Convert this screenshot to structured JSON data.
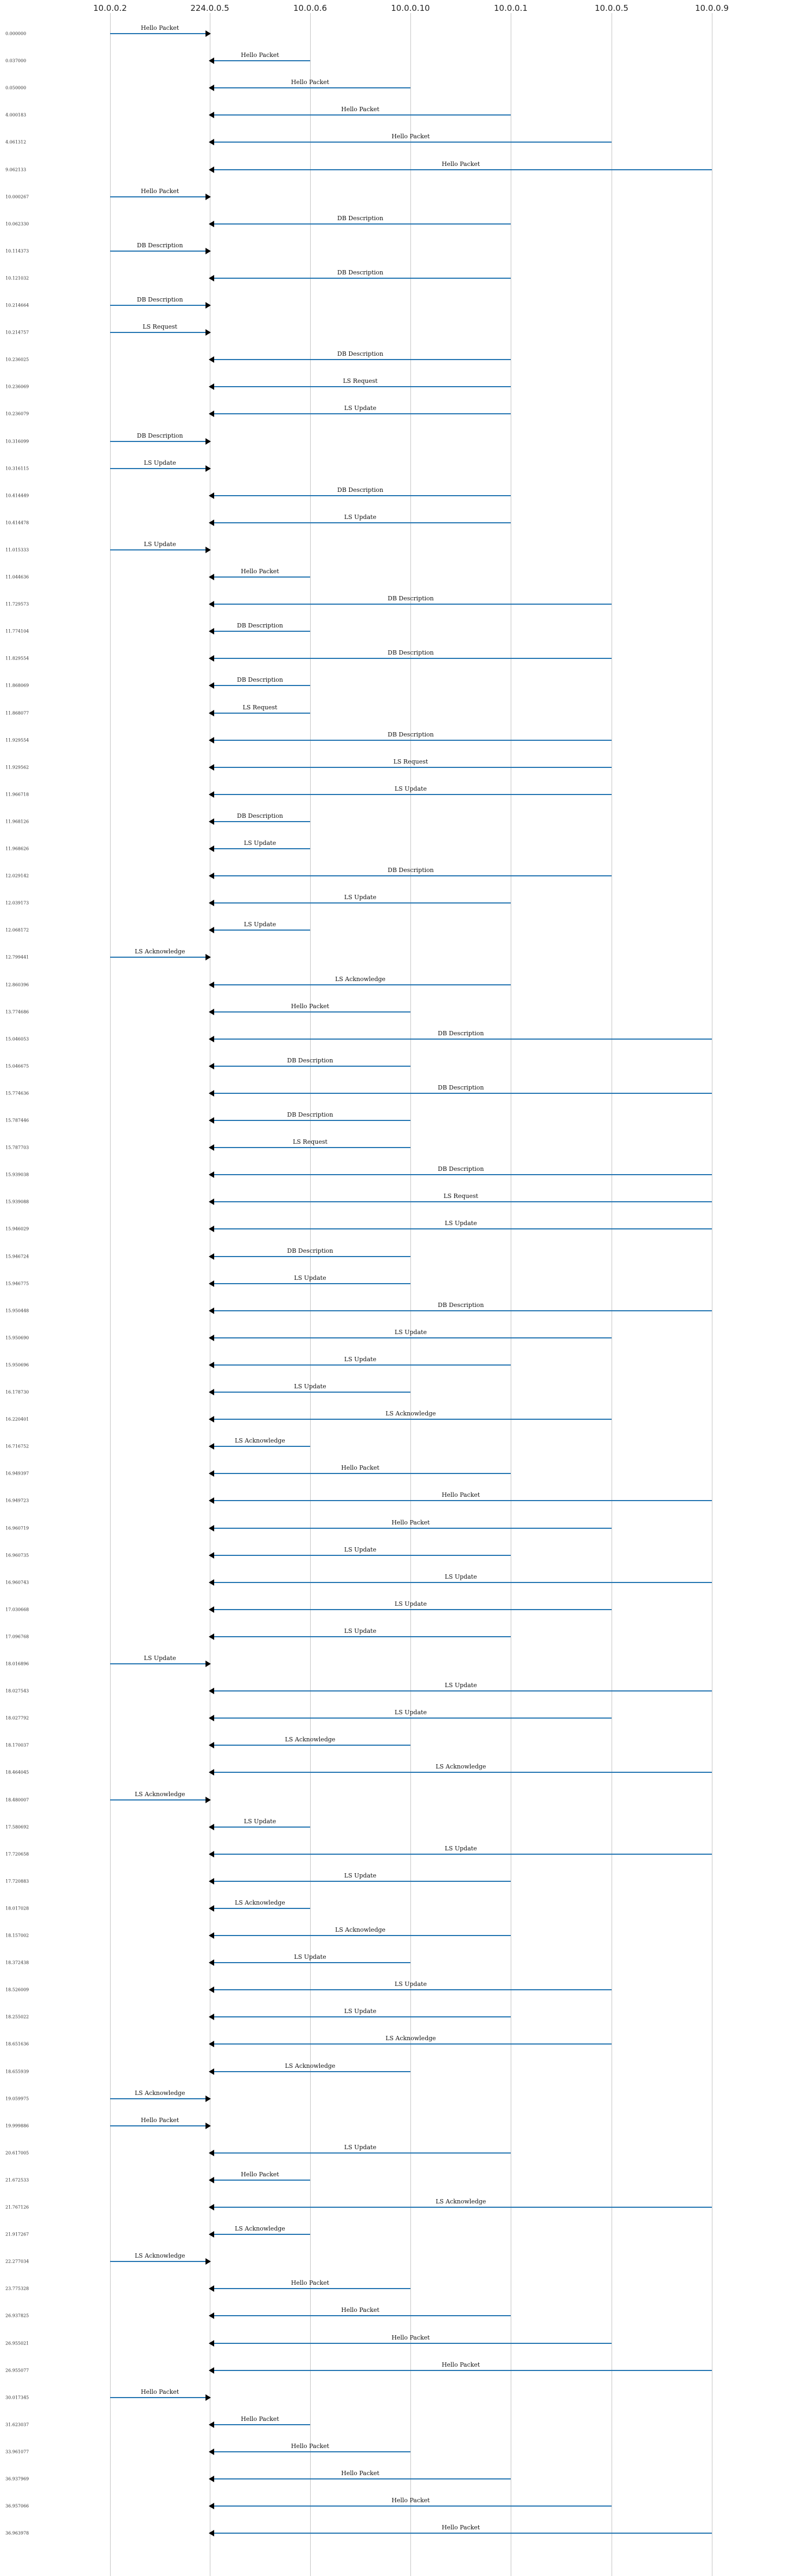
{
  "hosts": [
    "10.0.0.2",
    "224.0.0.5",
    "10.0.0.6",
    "10.0.0.10",
    "10.0.0.1",
    "10.0.0.5",
    "10.0.0.9"
  ],
  "messages": [
    {
      "t": "0.000000",
      "label": "Hello Packet",
      "from": 0,
      "to": 1
    },
    {
      "t": "0.037000",
      "label": "Hello Packet",
      "from": 2,
      "to": 1
    },
    {
      "t": "0.050000",
      "label": "Hello Packet",
      "from": 3,
      "to": 1
    },
    {
      "t": "4.000183",
      "label": "Hello Packet",
      "from": 4,
      "to": 1
    },
    {
      "t": "4.061312",
      "label": "Hello Packet",
      "from": 5,
      "to": 1
    },
    {
      "t": "9.062133",
      "label": "Hello Packet",
      "from": 6,
      "to": 1
    },
    {
      "t": "10.000267",
      "label": "Hello Packet",
      "from": 0,
      "to": 1
    },
    {
      "t": "10.062330",
      "label": "DB Description",
      "from": 4,
      "to": 1
    },
    {
      "t": "10.114373",
      "label": "DB Description",
      "from": 0,
      "to": 1
    },
    {
      "t": "10.121032",
      "label": "DB Description",
      "from": 4,
      "to": 1
    },
    {
      "t": "10.214664",
      "label": "DB Description",
      "from": 0,
      "to": 1
    },
    {
      "t": "10.214757",
      "label": "LS Request",
      "from": 0,
      "to": 1
    },
    {
      "t": "10.236025",
      "label": "DB Description",
      "from": 4,
      "to": 1
    },
    {
      "t": "10.236069",
      "label": "LS Request",
      "from": 4,
      "to": 1
    },
    {
      "t": "10.236079",
      "label": "LS Update",
      "from": 4,
      "to": 1
    },
    {
      "t": "10.316099",
      "label": "DB Description",
      "from": 0,
      "to": 1
    },
    {
      "t": "10.316115",
      "label": "LS Update",
      "from": 0,
      "to": 1
    },
    {
      "t": "10.414449",
      "label": "DB Description",
      "from": 4,
      "to": 1
    },
    {
      "t": "10.414478",
      "label": "LS Update",
      "from": 4,
      "to": 1
    },
    {
      "t": "11.015333",
      "label": "LS Update",
      "from": 0,
      "to": 1
    },
    {
      "t": "11.044636",
      "label": "Hello Packet",
      "from": 2,
      "to": 1
    },
    {
      "t": "11.729573",
      "label": "DB Description",
      "from": 5,
      "to": 1
    },
    {
      "t": "11.774104",
      "label": "DB Description",
      "from": 2,
      "to": 1
    },
    {
      "t": "11.829554",
      "label": "DB Description",
      "from": 5,
      "to": 1
    },
    {
      "t": "11.868069",
      "label": "DB Description",
      "from": 2,
      "to": 1
    },
    {
      "t": "11.868077",
      "label": "LS Request",
      "from": 2,
      "to": 1
    },
    {
      "t": "11.929554",
      "label": "DB Description",
      "from": 5,
      "to": 1
    },
    {
      "t": "11.929562",
      "label": "LS Request",
      "from": 5,
      "to": 1
    },
    {
      "t": "11.966718",
      "label": "LS Update",
      "from": 5,
      "to": 1
    },
    {
      "t": "11.968126",
      "label": "DB Description",
      "from": 2,
      "to": 1
    },
    {
      "t": "11.968626",
      "label": "LS Update",
      "from": 2,
      "to": 1
    },
    {
      "t": "12.029142",
      "label": "DB Description",
      "from": 5,
      "to": 1
    },
    {
      "t": "12.039173",
      "label": "LS Update",
      "from": 4,
      "to": 1
    },
    {
      "t": "12.068172",
      "label": "LS Update",
      "from": 2,
      "to": 1
    },
    {
      "t": "12.799441",
      "label": "LS Acknowledge",
      "from": 0,
      "to": 1
    },
    {
      "t": "12.860396",
      "label": "LS Acknowledge",
      "from": 4,
      "to": 1
    },
    {
      "t": "13.774686",
      "label": "Hello Packet",
      "from": 3,
      "to": 1
    },
    {
      "t": "15.046053",
      "label": "DB Description",
      "from": 6,
      "to": 1
    },
    {
      "t": "15.046675",
      "label": "DB Description",
      "from": 3,
      "to": 1
    },
    {
      "t": "15.774636",
      "label": "DB Description",
      "from": 6,
      "to": 1
    },
    {
      "t": "15.787446",
      "label": "DB Description",
      "from": 3,
      "to": 1
    },
    {
      "t": "15.787703",
      "label": "LS Request",
      "from": 3,
      "to": 1
    },
    {
      "t": "15.939038",
      "label": "DB Description",
      "from": 6,
      "to": 1
    },
    {
      "t": "15.939088",
      "label": "LS Request",
      "from": 6,
      "to": 1
    },
    {
      "t": "15.946029",
      "label": "LS Update",
      "from": 6,
      "to": 1
    },
    {
      "t": "15.946724",
      "label": "DB Description",
      "from": 3,
      "to": 1
    },
    {
      "t": "15.946775",
      "label": "LS Update",
      "from": 3,
      "to": 1
    },
    {
      "t": "15.950448",
      "label": "DB Description",
      "from": 6,
      "to": 1
    },
    {
      "t": "15.950690",
      "label": "LS Update",
      "from": 5,
      "to": 1
    },
    {
      "t": "15.950696",
      "label": "LS Update",
      "from": 4,
      "to": 1
    },
    {
      "t": "16.178730",
      "label": "LS Update",
      "from": 3,
      "to": 1
    },
    {
      "t": "16.220401",
      "label": "LS Acknowledge",
      "from": 5,
      "to": 1
    },
    {
      "t": "16.716752",
      "label": "LS Acknowledge",
      "from": 2,
      "to": 1
    },
    {
      "t": "16.949397",
      "label": "Hello Packet",
      "from": 4,
      "to": 1
    },
    {
      "t": "16.949723",
      "label": "Hello Packet",
      "from": 6,
      "to": 1
    },
    {
      "t": "16.960719",
      "label": "Hello Packet",
      "from": 5,
      "to": 1
    },
    {
      "t": "16.960735",
      "label": "LS Update",
      "from": 4,
      "to": 1
    },
    {
      "t": "16.960743",
      "label": "LS Update",
      "from": 6,
      "to": 1
    },
    {
      "t": "17.030668",
      "label": "LS Update",
      "from": 5,
      "to": 1
    },
    {
      "t": "17.096768",
      "label": "LS Update",
      "from": 4,
      "to": 1
    },
    {
      "t": "18.016896",
      "label": "LS Update",
      "from": 0,
      "to": 1
    },
    {
      "t": "18.027543",
      "label": "LS Update",
      "from": 6,
      "to": 1
    },
    {
      "t": "18.027792",
      "label": "LS Update",
      "from": 5,
      "to": 1
    },
    {
      "t": "18.170037",
      "label": "LS Acknowledge",
      "from": 3,
      "to": 1
    },
    {
      "t": "18.464045",
      "label": "LS Acknowledge",
      "from": 6,
      "to": 1
    },
    {
      "t": "18.480007",
      "label": "LS Acknowledge",
      "from": 0,
      "to": 1
    },
    {
      "t": "17.580692",
      "label": "LS Update",
      "from": 2,
      "to": 1
    },
    {
      "t": "17.720658",
      "label": "LS Update",
      "from": 6,
      "to": 1
    },
    {
      "t": "17.720883",
      "label": "LS Update",
      "from": 4,
      "to": 1
    },
    {
      "t": "18.017028",
      "label": "LS Acknowledge",
      "from": 2,
      "to": 1
    },
    {
      "t": "18.157002",
      "label": "LS Acknowledge",
      "from": 4,
      "to": 1
    },
    {
      "t": "18.372438",
      "label": "LS Update",
      "from": 3,
      "to": 1
    },
    {
      "t": "18.526009",
      "label": "LS Update",
      "from": 5,
      "to": 1
    },
    {
      "t": "18.255022",
      "label": "LS Update",
      "from": 4,
      "to": 1
    },
    {
      "t": "18.651636",
      "label": "LS Acknowledge",
      "from": 5,
      "to": 1
    },
    {
      "t": "18.655939",
      "label": "LS Acknowledge",
      "from": 3,
      "to": 1
    },
    {
      "t": "19.059975",
      "label": "LS Acknowledge",
      "from": 0,
      "to": 1
    },
    {
      "t": "19.999886",
      "label": "Hello Packet",
      "from": 0,
      "to": 1
    },
    {
      "t": "20.617005",
      "label": "LS Update",
      "from": 4,
      "to": 1
    },
    {
      "t": "21.672533",
      "label": "Hello Packet",
      "from": 2,
      "to": 1
    },
    {
      "t": "21.767126",
      "label": "LS Acknowledge",
      "from": 6,
      "to": 1
    },
    {
      "t": "21.917267",
      "label": "LS Acknowledge",
      "from": 2,
      "to": 1
    },
    {
      "t": "22.277034",
      "label": "LS Acknowledge",
      "from": 0,
      "to": 1
    },
    {
      "t": "23.775328",
      "label": "Hello Packet",
      "from": 3,
      "to": 1
    },
    {
      "t": "26.937825",
      "label": "Hello Packet",
      "from": 4,
      "to": 1
    },
    {
      "t": "26.955021",
      "label": "Hello Packet",
      "from": 5,
      "to": 1
    },
    {
      "t": "26.955077",
      "label": "Hello Packet",
      "from": 6,
      "to": 1
    },
    {
      "t": "30.017345",
      "label": "Hello Packet",
      "from": 0,
      "to": 1
    },
    {
      "t": "31.623037",
      "label": "Hello Packet",
      "from": 2,
      "to": 1
    },
    {
      "t": "33.961077",
      "label": "Hello Packet",
      "from": 3,
      "to": 1
    },
    {
      "t": "36.937969",
      "label": "Hello Packet",
      "from": 4,
      "to": 1
    },
    {
      "t": "36.957066",
      "label": "Hello Packet",
      "from": 5,
      "to": 1
    },
    {
      "t": "36.963978",
      "label": "Hello Packet",
      "from": 6,
      "to": 1
    }
  ]
}
